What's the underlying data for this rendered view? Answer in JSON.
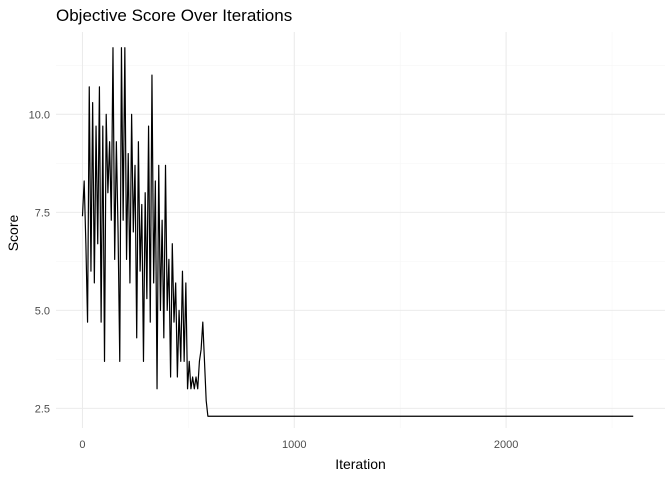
{
  "chart_data": {
    "type": "line",
    "title": "Objective Score Over Iterations",
    "xlabel": "Iteration",
    "ylabel": "Score",
    "xlim": [
      -125,
      2750
    ],
    "ylim": [
      2.0,
      12.1
    ],
    "x_ticks": [
      0,
      1000,
      2000
    ],
    "x_tick_labels": [
      "0",
      "1000",
      "2000"
    ],
    "y_ticks": [
      2.5,
      5.0,
      7.5,
      10.0
    ],
    "y_tick_labels": [
      "2.5",
      "5.0",
      "7.5",
      "10.0"
    ],
    "grid": true,
    "legend": "none",
    "line_color": "#000000",
    "series": [
      {
        "x": [
          0,
          8,
          16,
          24,
          32,
          40,
          48,
          56,
          64,
          72,
          80,
          88,
          96,
          104,
          112,
          120,
          128,
          136,
          144,
          152,
          160,
          168,
          176,
          184,
          192,
          200,
          208,
          216,
          224,
          232,
          240,
          248,
          256,
          264,
          272,
          280,
          288,
          296,
          304,
          312,
          320,
          328,
          336,
          344,
          352,
          360,
          368,
          376,
          384,
          392,
          400,
          408,
          416,
          424,
          432,
          440,
          448,
          456,
          464,
          472,
          480,
          488,
          496,
          504,
          512,
          520,
          528,
          536,
          544,
          552,
          560,
          568,
          576,
          584,
          592,
          600,
          608,
          616,
          624,
          632,
          640,
          2600
        ],
        "y": [
          7.4,
          8.3,
          6.7,
          4.7,
          10.7,
          6.0,
          10.3,
          5.7,
          9.7,
          6.7,
          10.7,
          4.7,
          9.7,
          3.7,
          10.0,
          8.0,
          9.3,
          7.3,
          11.7,
          6.3,
          9.3,
          7.0,
          3.7,
          11.7,
          7.3,
          11.7,
          6.3,
          9.0,
          5.7,
          10.0,
          7.0,
          8.7,
          4.3,
          9.3,
          6.0,
          7.7,
          3.7,
          8.0,
          5.3,
          9.7,
          4.7,
          11.0,
          5.7,
          8.3,
          3.0,
          8.7,
          5.0,
          7.3,
          4.3,
          8.7,
          5.0,
          6.3,
          3.3,
          6.7,
          4.7,
          5.7,
          3.3,
          5.0,
          3.7,
          6.0,
          3.7,
          5.7,
          3.0,
          3.7,
          3.0,
          3.3,
          3.0,
          3.3,
          3.0,
          3.7,
          4.0,
          4.7,
          3.7,
          2.7,
          2.3,
          2.3,
          2.3,
          2.3,
          2.3,
          2.3,
          2.3,
          2.3
        ]
      }
    ]
  }
}
